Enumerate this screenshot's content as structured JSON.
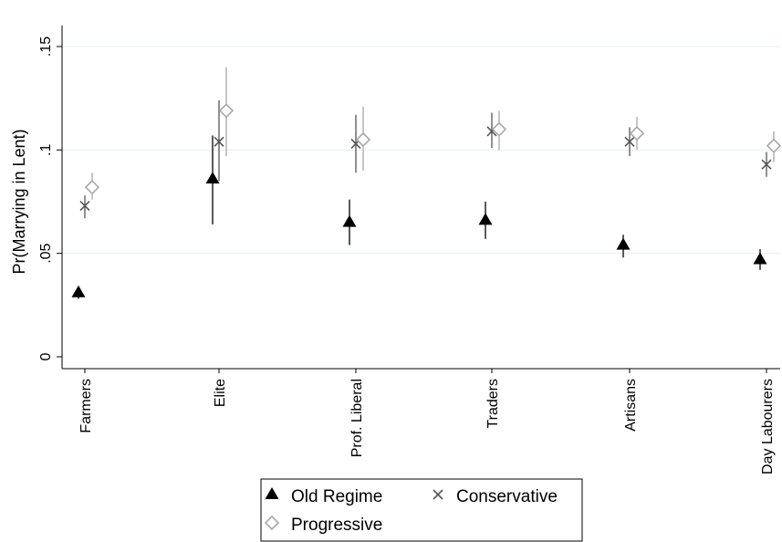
{
  "chart_data": {
    "type": "scatter",
    "title": "",
    "xlabel": "",
    "ylabel": "Pr(Marrying in Lent)",
    "ylim": [
      0,
      0.15
    ],
    "yticks": [
      0,
      0.05,
      0.1,
      0.15
    ],
    "ytick_labels": [
      "0",
      ".05",
      ".1",
      ".15"
    ],
    "grid": true,
    "legend_position": "bottom",
    "categories": [
      "Farmers",
      "Elite",
      "Prof. Liberal",
      "Traders",
      "Artisans",
      "Day Labourers"
    ],
    "series": [
      {
        "name": "Old Regime",
        "marker": "triangle",
        "color": "#000000",
        "values": [
          0.031,
          0.086,
          0.065,
          0.066,
          0.054,
          0.047
        ],
        "ci_low": [
          0.028,
          0.064,
          0.054,
          0.057,
          0.048,
          0.042
        ],
        "ci_high": [
          0.033,
          0.107,
          0.076,
          0.075,
          0.059,
          0.052
        ]
      },
      {
        "name": "Conservative",
        "marker": "x",
        "color": "#555555",
        "values": [
          0.073,
          0.104,
          0.103,
          0.109,
          0.104,
          0.093
        ],
        "ci_low": [
          0.067,
          0.085,
          0.089,
          0.101,
          0.097,
          0.087
        ],
        "ci_high": [
          0.078,
          0.124,
          0.117,
          0.118,
          0.111,
          0.099
        ]
      },
      {
        "name": "Progressive",
        "marker": "diamond",
        "color": "#a8a8a8",
        "values": [
          0.082,
          0.119,
          0.105,
          0.11,
          0.108,
          0.102
        ],
        "ci_low": [
          0.076,
          0.097,
          0.09,
          0.1,
          0.1,
          0.094
        ],
        "ci_high": [
          0.089,
          0.14,
          0.121,
          0.119,
          0.116,
          0.109
        ]
      }
    ]
  }
}
